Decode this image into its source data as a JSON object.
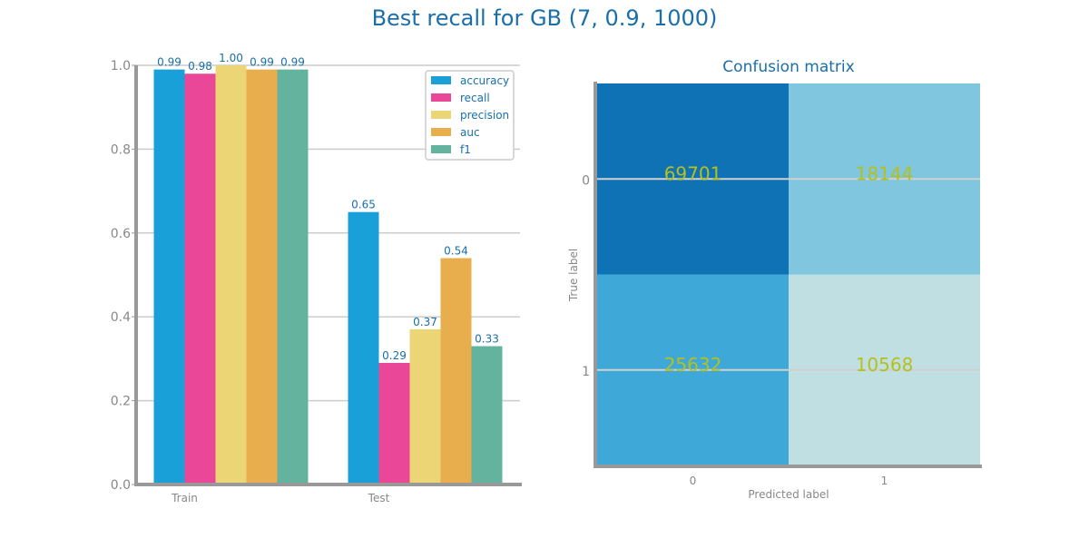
{
  "suptitle": "Best recall for GB (7, 0.9, 1000)",
  "chart_data": [
    {
      "type": "bar",
      "title": "",
      "xlabel": "",
      "ylabel": "",
      "categories": [
        "Train",
        "Test"
      ],
      "ylim": [
        0,
        1.0
      ],
      "yticks": [
        0.0,
        0.2,
        0.4,
        0.6,
        0.8,
        1.0
      ],
      "ytick_labels": [
        "0.0",
        "0.2",
        "0.4",
        "0.6",
        "0.8",
        "1.0"
      ],
      "grid": "y",
      "legend_position": "top-right",
      "series": [
        {
          "name": "accuracy",
          "color": "#1aa0d8",
          "values": [
            0.99,
            0.65
          ],
          "labels": [
            "0.99",
            "0.65"
          ]
        },
        {
          "name": "recall",
          "color": "#ea4799",
          "values": [
            0.98,
            0.29
          ],
          "labels": [
            "0.98",
            "0.29"
          ]
        },
        {
          "name": "precision",
          "color": "#ebd574",
          "values": [
            1.0,
            0.37
          ],
          "labels": [
            "1.00",
            "0.37"
          ]
        },
        {
          "name": "auc",
          "color": "#e8ae4e",
          "values": [
            0.99,
            0.54
          ],
          "labels": [
            "0.99",
            "0.54"
          ]
        },
        {
          "name": "f1",
          "color": "#64b39e",
          "values": [
            0.99,
            0.33
          ],
          "labels": [
            "0.99",
            "0.33"
          ]
        }
      ]
    },
    {
      "type": "heatmap",
      "title": "Confusion matrix",
      "xlabel": "Predicted label",
      "ylabel": "True label",
      "x_categories": [
        "0",
        "1"
      ],
      "y_categories": [
        "0",
        "1"
      ],
      "values": [
        [
          69701,
          18144
        ],
        [
          25632,
          10568
        ]
      ],
      "cell_colors": [
        [
          "#0e72b4",
          "#7fc6de"
        ],
        [
          "#3ea9d8",
          "#bfdfe2"
        ]
      ],
      "value_color": "#b5c01e"
    }
  ],
  "colors": {
    "title": "#1a6fa8",
    "tick": "#888888",
    "axis": "#999999",
    "grid": "#cccccc",
    "bar_label": "#1a6fa8",
    "legend_text": "#1a6fa8"
  }
}
